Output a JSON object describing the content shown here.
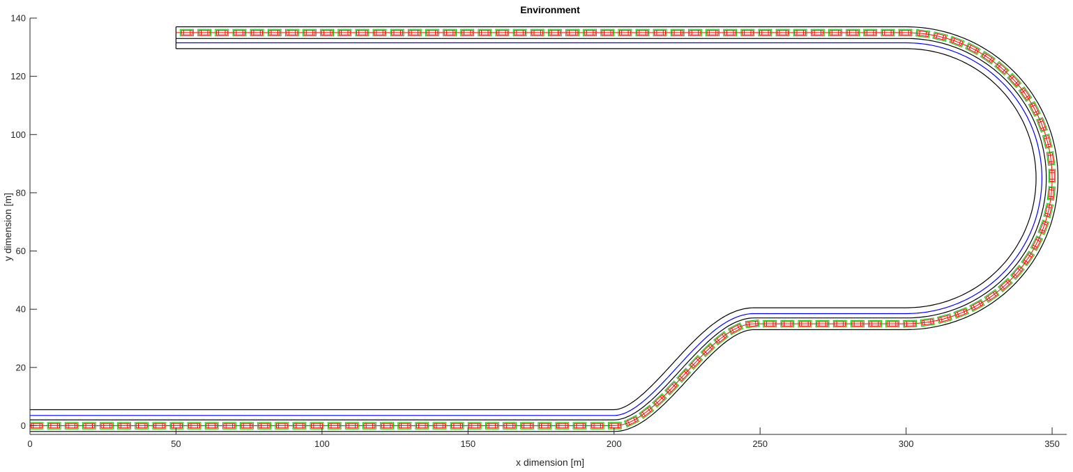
{
  "chart_data": {
    "type": "line",
    "title": "Environment",
    "xlabel": "x dimension [m]",
    "ylabel": "y dimension [m]",
    "xlim": [
      0,
      355
    ],
    "ylim": [
      -3,
      140
    ],
    "xticks": [
      0,
      50,
      100,
      150,
      200,
      250,
      300,
      350
    ],
    "yticks": [
      0,
      20,
      40,
      60,
      80,
      100,
      120,
      140
    ],
    "grid": false,
    "road": {
      "centerline_segments": [
        {
          "kind": "straight",
          "from": [
            0,
            0
          ],
          "to": [
            200,
            0
          ]
        },
        {
          "kind": "s-curve",
          "from": [
            200,
            0
          ],
          "to": [
            248,
            35
          ]
        },
        {
          "kind": "straight",
          "from": [
            248,
            35
          ],
          "to": [
            300,
            35
          ]
        },
        {
          "kind": "arc",
          "center": [
            300,
            85
          ],
          "radius": 50,
          "from_deg": -90,
          "to_deg": 90
        },
        {
          "kind": "straight",
          "from": [
            300,
            135
          ],
          "to": [
            50,
            135
          ]
        }
      ],
      "edge_offsets": [
        -2,
        2,
        5.5
      ],
      "lane_marker_offsets": [
        3.5
      ],
      "reference_path_offsets": [
        0
      ],
      "end_line_x": 50,
      "colors": {
        "edge": "#000000",
        "lane_marker": "#0000ff",
        "reference_path": "#ff0000",
        "vehicle_box": "#ff0000",
        "vehicle_fill": "#00cc00"
      }
    },
    "vehicle_trace": {
      "start_x": 0,
      "end_x_on_top": 202,
      "spacing_m": 6,
      "length_m": 4.5,
      "width_m": 1.8
    }
  }
}
